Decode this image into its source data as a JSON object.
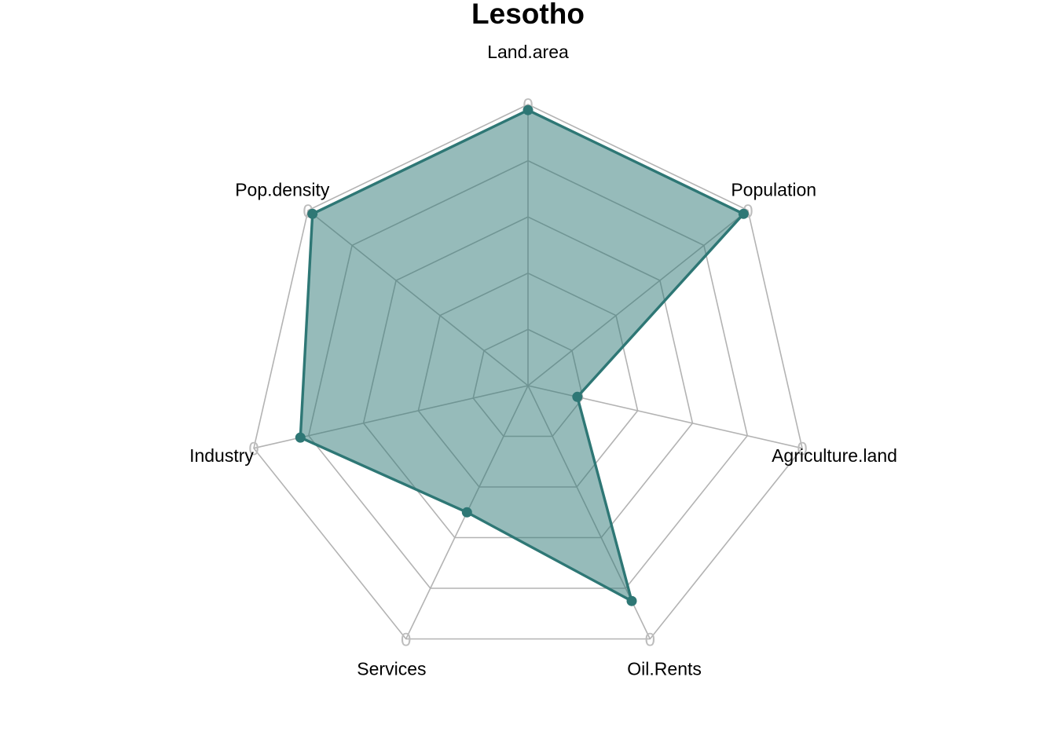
{
  "chart_data": {
    "type": "radar",
    "title": "Lesotho",
    "axes": [
      "Land.area",
      "Population",
      "Agriculture.land",
      "Oil.Rents",
      "Services",
      "Industry",
      "Pop.density"
    ],
    "axis_max_label": "0",
    "levels": 5,
    "range": [
      0,
      1
    ],
    "series": [
      {
        "values": [
          0.98,
          0.98,
          0.18,
          0.85,
          0.5,
          0.83,
          0.98
        ]
      }
    ],
    "colors": {
      "grid": "#b3b3b3",
      "series_line": "#2e7775",
      "series_fill": "#2e7775",
      "series_fill_opacity": 0.5,
      "tick_label": "#bdbdbd"
    }
  }
}
